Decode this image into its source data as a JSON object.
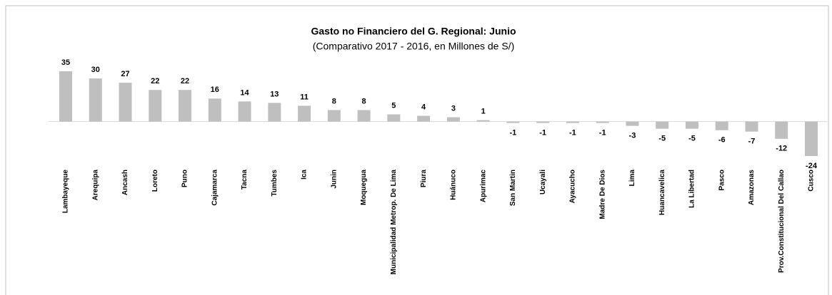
{
  "chart_data": {
    "type": "bar",
    "title": "Gasto no Financiero del G. Regional: Junio",
    "subtitle": "(Comparativo 2017 - 2016, en Millones de S/)",
    "categories": [
      "Lambayeque",
      "Arequipa",
      "Ancash",
      "Loreto",
      "Puno",
      "Cajamarca",
      "Tacna",
      "Tumbes",
      "Ica",
      "Junin",
      "Moquegua",
      "Municipalidad Metrop. De Lima",
      "Piura",
      "Huánuco",
      "Apurimac",
      "San Martin",
      "Ucayali",
      "Ayacucho",
      "Madre De Dios",
      "Lima",
      "Huancavelica",
      "La Libertad",
      "Pasco",
      "Amazonas",
      "Prov.Constitucional Del Callao",
      "Cusco"
    ],
    "values": [
      35,
      30,
      27,
      22,
      22,
      16,
      14,
      13,
      11,
      8,
      8,
      5,
      4,
      3,
      1,
      -1,
      -1,
      -1,
      -1,
      -3,
      -5,
      -5,
      -6,
      -7,
      -12,
      -24
    ],
    "color": "#bfbfbf"
  }
}
